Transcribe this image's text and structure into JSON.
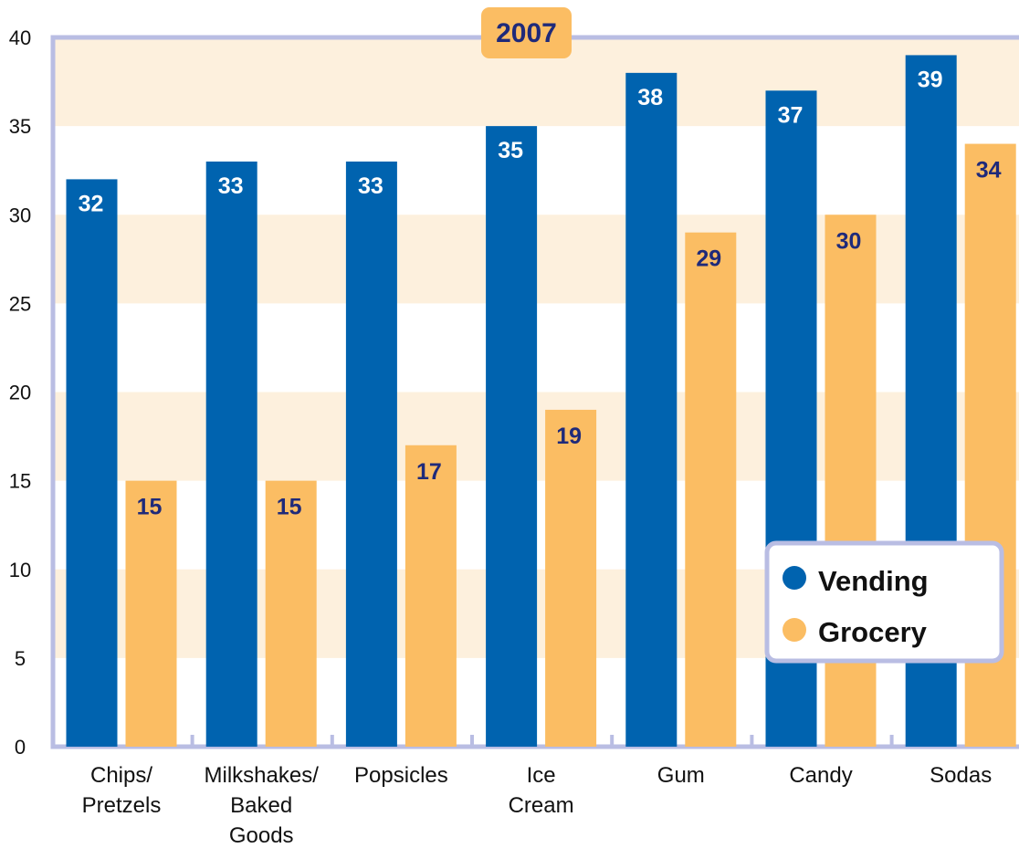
{
  "chart_data": {
    "type": "bar",
    "title": "2007",
    "categories": [
      [
        "Chips/",
        "Pretzels"
      ],
      [
        "Milkshakes/",
        "Baked",
        "Goods"
      ],
      [
        "Popsicles"
      ],
      [
        "Ice",
        "Cream"
      ],
      [
        "Gum"
      ],
      [
        "Candy"
      ],
      [
        "Sodas"
      ]
    ],
    "series": [
      {
        "name": "Vending",
        "values": [
          32,
          33,
          33,
          35,
          38,
          37,
          39
        ],
        "color": "#0063af"
      },
      {
        "name": "Grocery",
        "values": [
          15,
          15,
          17,
          19,
          29,
          30,
          34
        ],
        "color": "#fbbd63"
      }
    ],
    "ylim": [
      0,
      40
    ],
    "yticks": [
      0,
      5,
      10,
      15,
      20,
      25,
      30,
      35,
      40
    ],
    "xlabel": "",
    "ylabel": "",
    "legend_position": "bottom-right",
    "band_color": "#fdf0dd",
    "frame_color": "#b9bde3"
  }
}
